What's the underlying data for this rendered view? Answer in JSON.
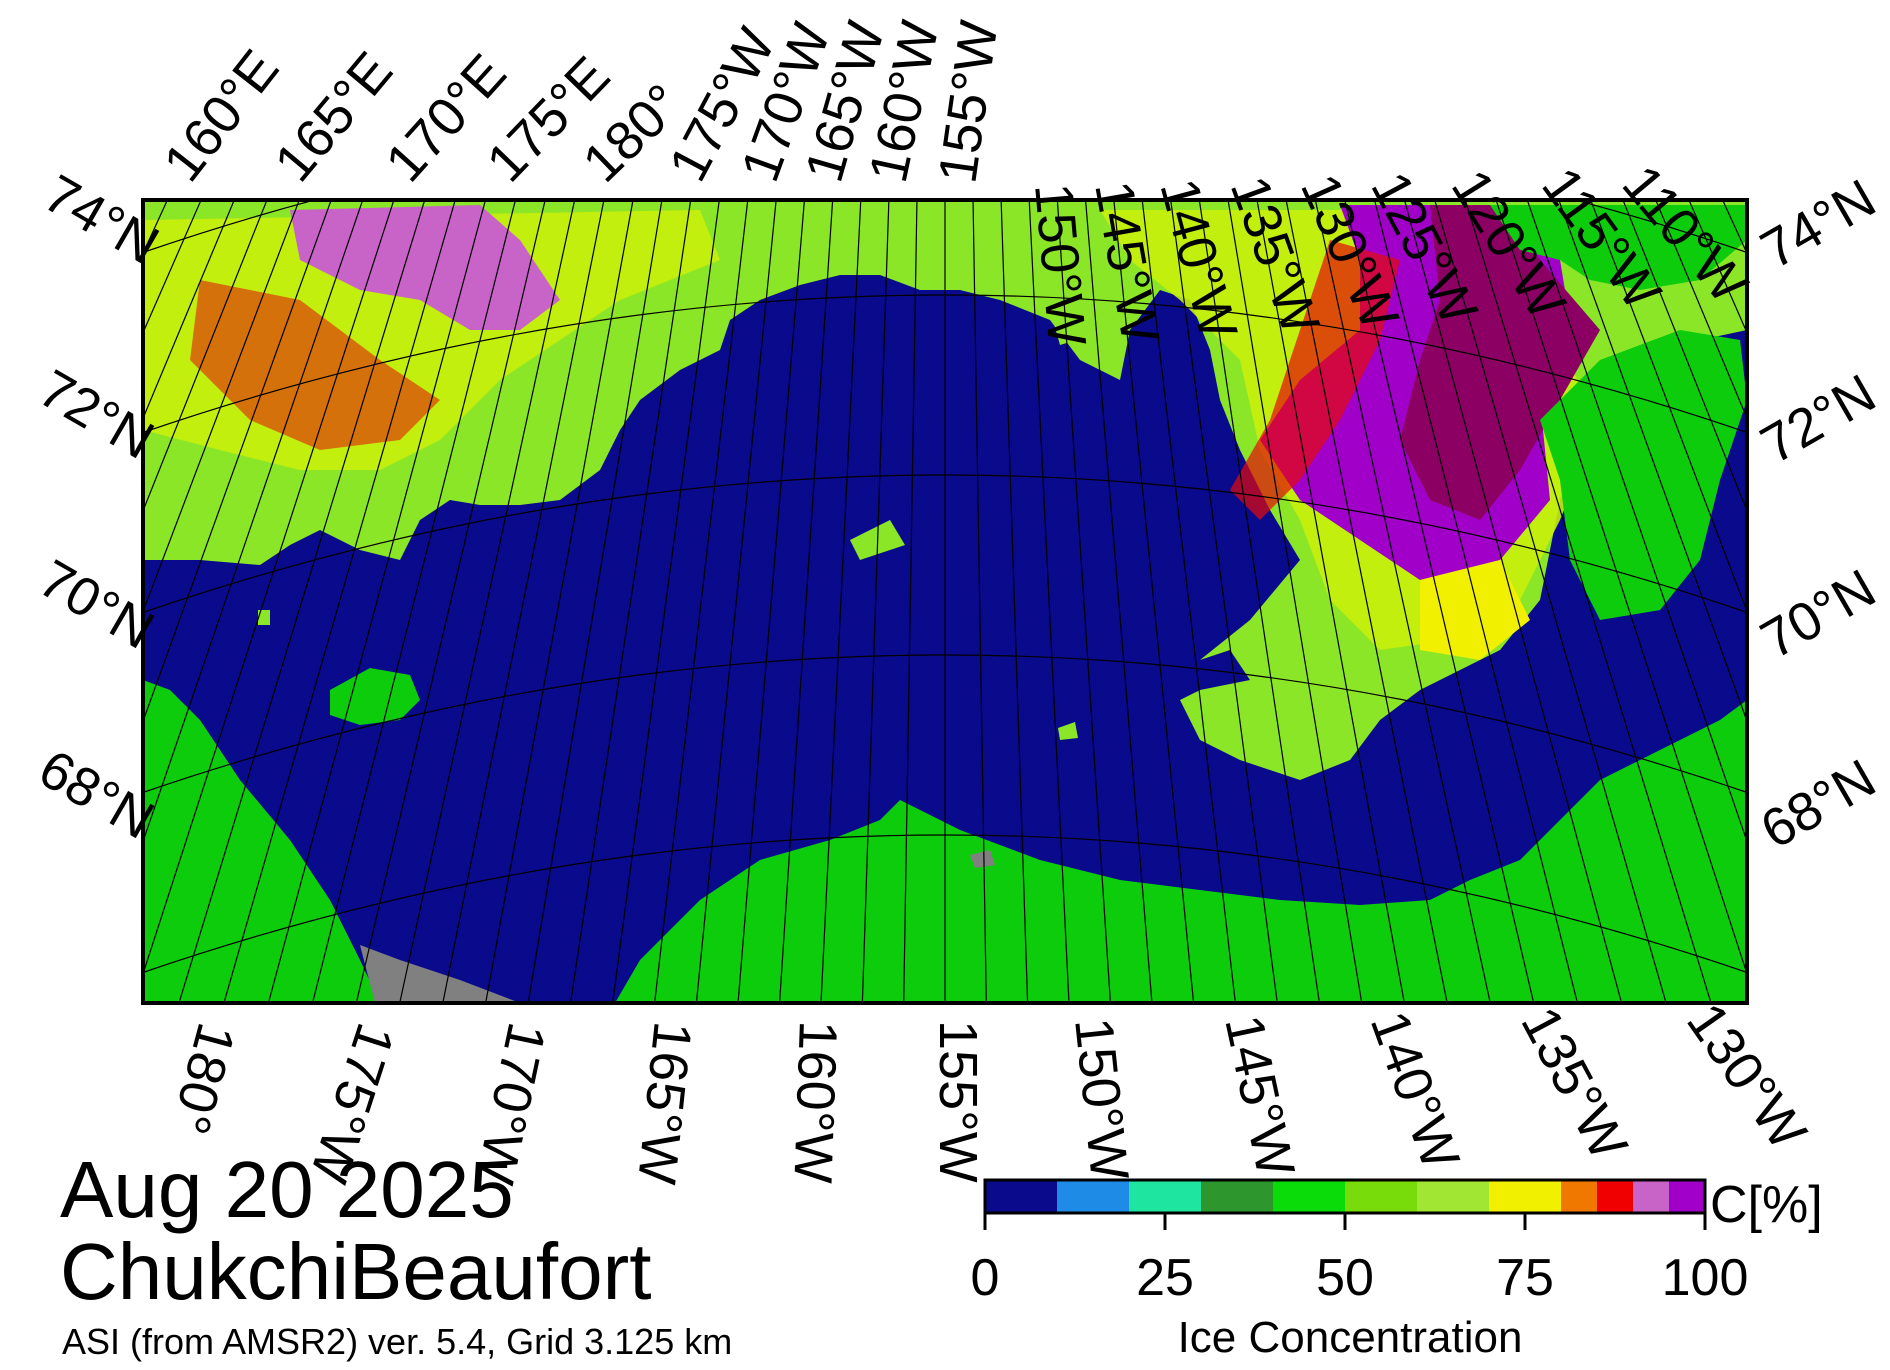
{
  "map": {
    "date": "Aug 20 2025",
    "region": "ChukchiBeaufort",
    "product": "ASI (from AMSR2) ver. 5.4,  Grid 3.125 km",
    "top_lon_labels": [
      "160°E",
      "165°E",
      "170°E",
      "175°E",
      "180°",
      "175°W",
      "170°W",
      "165°W",
      "160°W",
      "155°W",
      "150°W",
      "145°W",
      "140°W",
      "135°W",
      "130°W",
      "125°W",
      "120°W",
      "115°W",
      "110°W"
    ],
    "bottom_lon_labels": [
      "180°",
      "175°W",
      "170°W",
      "165°W",
      "160°W",
      "155°W",
      "150°W",
      "145°W",
      "140°W",
      "135°W",
      "130°W"
    ],
    "left_lat_labels": [
      "74°N",
      "72°N",
      "70°N",
      "68°N"
    ],
    "right_lat_labels": [
      "74°N",
      "72°N",
      "70°N",
      "68°N"
    ]
  },
  "colorbar": {
    "unit": "C[%]",
    "title": "Ice Concentration",
    "ticks": [
      "0",
      "25",
      "50",
      "75",
      "100"
    ],
    "colors": [
      "#0a0a8c",
      "#1e8ce6",
      "#1ee6a0",
      "#2d962d",
      "#0adc0a",
      "#78dc0a",
      "#a0e632",
      "#f0f000",
      "#f07800",
      "#f00000",
      "#c864c8",
      "#a000c8"
    ]
  },
  "colors": {
    "open_water": "#0a0a8c",
    "land": "#0ccc0c",
    "no_data": "#808080",
    "ice_consolidated": "#8c0064"
  }
}
